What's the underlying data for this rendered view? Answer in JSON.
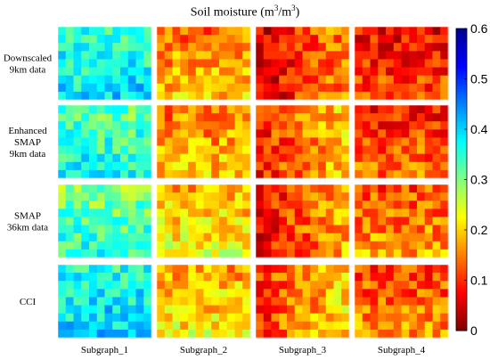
{
  "chart_data": {
    "type": "heatmap",
    "title_prefix": "Soil moisture (m",
    "title_exp1": "3",
    "title_mid": "/m",
    "title_exp2": "3",
    "title_suffix": ")",
    "rows": [
      "Downscaled\n9km data",
      "Enhanced\nSMAP\n9km data",
      "SMAP\n36km data",
      "CCI"
    ],
    "columns": [
      "Subgraph_1",
      "Subgraph_2",
      "Subgraph_3",
      "Subgraph_4"
    ],
    "panel_grid": [
      12,
      9
    ],
    "colorbar": {
      "min": 0,
      "max": 0.6,
      "ticks": [
        0,
        0.1,
        0.2,
        0.3,
        0.4,
        0.5,
        0.6
      ],
      "tick_labels": [
        "0",
        "0.1",
        "0.2",
        "0.3",
        "0.4",
        "0.5",
        "0.6"
      ],
      "colormap": [
        "#800000",
        "#ff0000",
        "#ff8000",
        "#ffff00",
        "#80ff80",
        "#00ffff",
        "#0080ff",
        "#0000ff",
        "#00008f"
      ]
    },
    "mean_soil_moisture": [
      [
        0.37,
        0.17,
        0.11,
        0.1
      ],
      [
        0.35,
        0.17,
        0.15,
        0.12
      ],
      [
        0.33,
        0.21,
        0.13,
        0.15
      ],
      [
        0.38,
        0.2,
        0.16,
        0.14
      ]
    ]
  }
}
